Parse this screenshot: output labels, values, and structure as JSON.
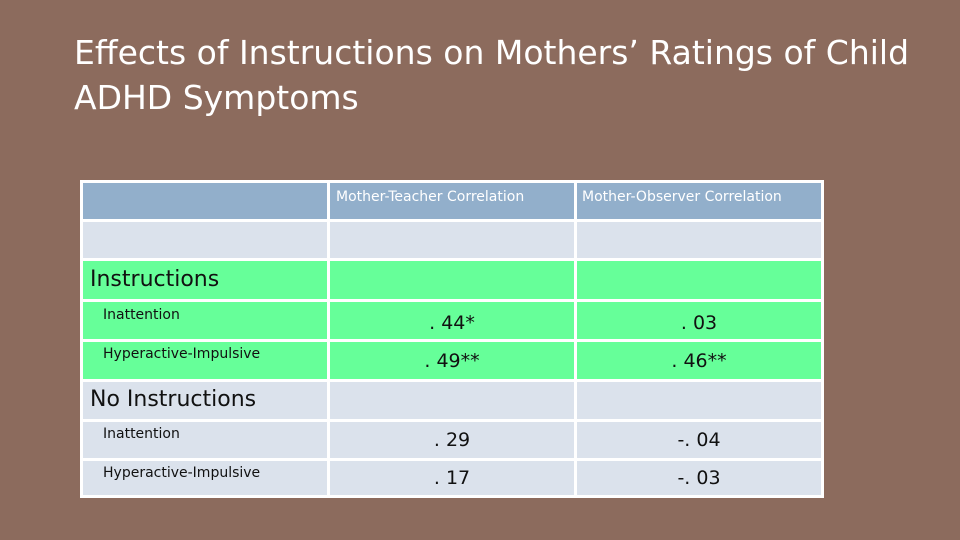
{
  "title": "Effects of Instructions on Mothers’ Ratings of Child ADHD Symptoms",
  "table": {
    "columns": [
      "",
      "Mother-Teacher Correlation",
      "Mother-Observer Correlation"
    ],
    "sections": [
      {
        "label": "Instructions",
        "rows": [
          {
            "label": "Inattention",
            "teacher": ". 44*",
            "observer": ". 03"
          },
          {
            "label": "Hyperactive-Impulsive",
            "teacher": ". 49**",
            "observer": ". 46**"
          }
        ]
      },
      {
        "label": "No Instructions",
        "rows": [
          {
            "label": "Inattention",
            "teacher": ". 29",
            "observer": "-. 04"
          },
          {
            "label": "Hyperactive-Impulsive",
            "teacher": ". 17",
            "observer": "-. 03"
          }
        ]
      }
    ]
  },
  "colors": {
    "background": "#8c6b5d",
    "header_blue": "#92afcb",
    "row_light": "#dbe2ec",
    "highlight_green": "#66ff99"
  }
}
